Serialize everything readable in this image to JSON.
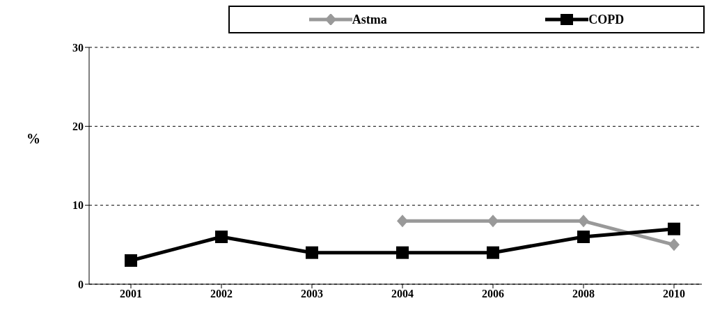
{
  "chart_data": {
    "type": "line",
    "ylabel": "%",
    "categories": [
      "2001",
      "2002",
      "2003",
      "2004",
      "2006",
      "2008",
      "2010"
    ],
    "series": [
      {
        "name": "Astma",
        "color": "#999999",
        "marker": "diamond",
        "values": [
          null,
          null,
          null,
          8,
          8,
          8,
          5
        ]
      },
      {
        "name": "COPD",
        "color": "#000000",
        "marker": "square",
        "values": [
          3,
          6,
          4,
          4,
          4,
          6,
          7
        ]
      }
    ],
    "ylim": [
      0,
      30
    ],
    "yticks": [
      0,
      10,
      20,
      30
    ],
    "grid": "y",
    "legend": "top",
    "line_style": "solid"
  }
}
